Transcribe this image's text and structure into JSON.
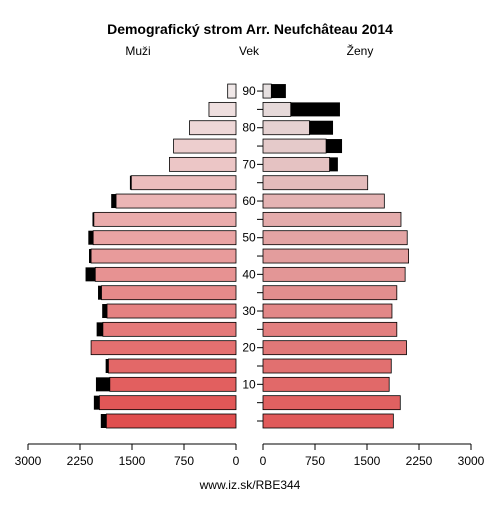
{
  "chart_data": {
    "type": "bar",
    "title": "Demografický strom Arr. Neufchâteau 2014",
    "left_label": "Muži",
    "center_label": "Vek",
    "right_label": "Ženy",
    "footer": "www.iz.sk/RBE344",
    "xlim": [
      0,
      3000
    ],
    "x_ticks": [
      0,
      750,
      1500,
      2250,
      3000
    ],
    "x_tick_labels_left": [
      "3000",
      "2250",
      "1500",
      "750",
      "0"
    ],
    "x_tick_labels_right": [
      "0",
      "750",
      "1500",
      "2250",
      "3000"
    ],
    "age_ticks": [
      10,
      20,
      30,
      40,
      50,
      60,
      70,
      80,
      90
    ],
    "age_groups": [
      "0-4",
      "5-9",
      "10-14",
      "15-19",
      "20-24",
      "25-29",
      "30-34",
      "35-39",
      "40-44",
      "45-49",
      "50-54",
      "55-59",
      "60-64",
      "65-69",
      "70-74",
      "75-79",
      "80-84",
      "85-89",
      "90+"
    ],
    "men_total": [
      1950,
      2050,
      2020,
      1880,
      2090,
      2010,
      1930,
      1990,
      2170,
      2120,
      2130,
      2070,
      1800,
      1530,
      960,
      900,
      670,
      390,
      120
    ],
    "men_black": [
      80,
      80,
      200,
      40,
      0,
      90,
      70,
      50,
      140,
      30,
      70,
      20,
      70,
      20,
      0,
      0,
      0,
      0,
      0
    ],
    "women_total": [
      1880,
      1980,
      1820,
      1850,
      2070,
      1930,
      1860,
      1930,
      2050,
      2100,
      2080,
      1990,
      1750,
      1510,
      1080,
      1140,
      1010,
      1110,
      330
    ],
    "women_black": [
      0,
      0,
      0,
      0,
      0,
      0,
      0,
      0,
      0,
      0,
      0,
      0,
      0,
      0,
      120,
      230,
      340,
      710,
      210
    ],
    "colors": {
      "men_young": "#e04e4e",
      "men_old": "#f0e8e8",
      "women_young": "#e05a5a",
      "women_old": "#e6e0e0",
      "excess": "#000000",
      "axis": "#000000"
    }
  }
}
